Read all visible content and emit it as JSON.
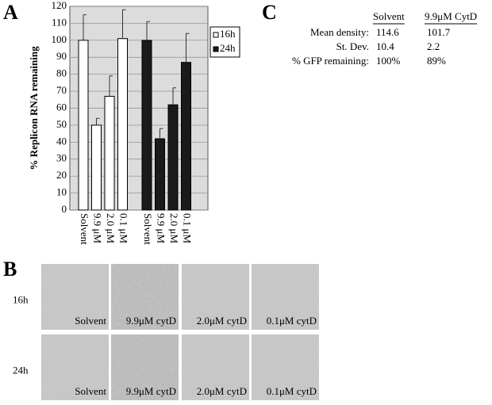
{
  "chart_data": {
    "type": "bar",
    "panel_label": "A",
    "y_label": "% Replicon RNA remaining",
    "categories": [
      "Solvent",
      "9.9 μM",
      "2.0 μM",
      "0.1 μM"
    ],
    "series": [
      {
        "name": "16h",
        "color": "#ffffff",
        "values": [
          100,
          50,
          67,
          101
        ],
        "errors": [
          15,
          4,
          12,
          17
        ]
      },
      {
        "name": "24h",
        "color": "#1a1a1a",
        "values": [
          100,
          42,
          62,
          87
        ],
        "errors": [
          11,
          6,
          10,
          17
        ]
      }
    ],
    "ylim": [
      0,
      120
    ],
    "yticks": [
      0,
      10,
      20,
      30,
      40,
      50,
      60,
      70,
      80,
      90,
      100,
      110,
      120
    ],
    "grid": true,
    "legend": "upper right"
  },
  "panel_b": {
    "letter": "B",
    "rows": [
      "16h",
      "24h"
    ],
    "columns": [
      "Solvent",
      "9.9μM cytD",
      "2.0μM cytD",
      "0.1μM cytD"
    ]
  },
  "panel_c": {
    "letter": "C",
    "header": [
      "Solvent",
      "9.9μM CytD"
    ],
    "rows": [
      [
        "Mean density:",
        "114.6",
        "101.7"
      ],
      [
        "St. Dev.",
        "10.4",
        "2.2"
      ],
      [
        "% GFP remaining:",
        "100%",
        "89%"
      ]
    ]
  }
}
